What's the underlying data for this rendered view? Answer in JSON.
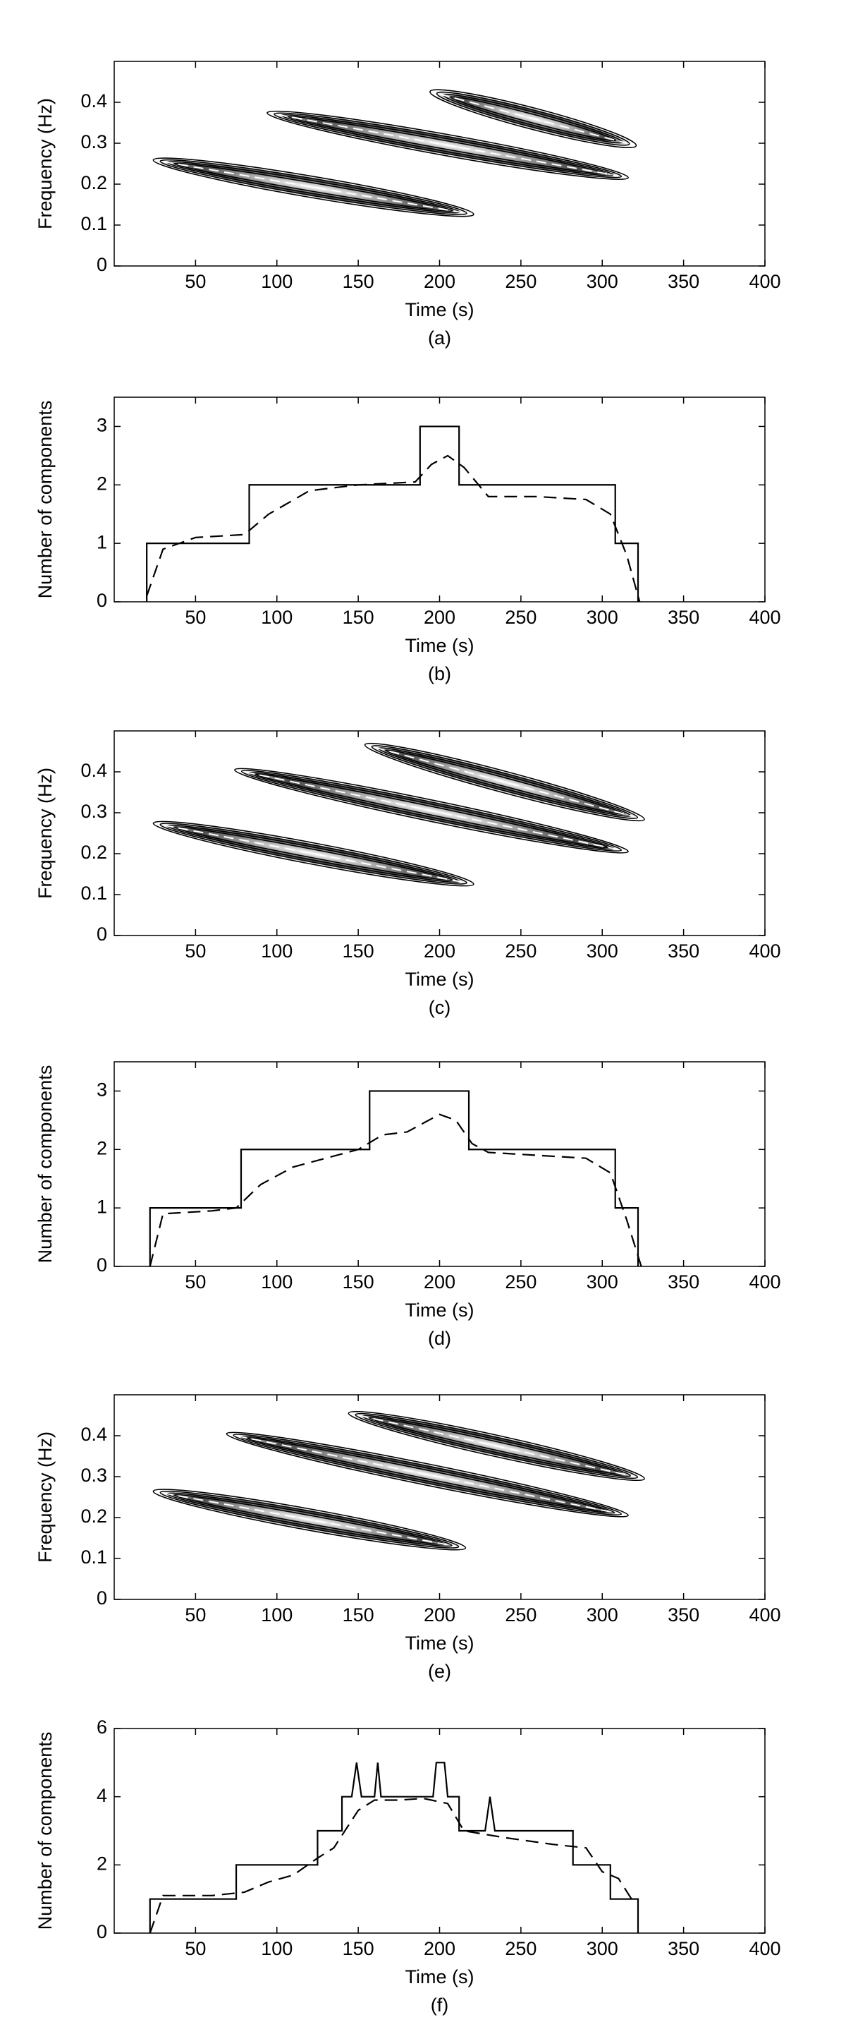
{
  "chart_data": [
    {
      "type": "contour",
      "xlabel": "Time (s)",
      "ylabel": "Frequency (Hz)",
      "caption": "(a)",
      "xlim": [
        0,
        400
      ],
      "xticks": [
        50,
        100,
        150,
        200,
        250,
        300,
        350,
        400
      ],
      "ylim": [
        0,
        0.5
      ],
      "yticks": [
        0,
        0.1,
        0.2,
        0.3,
        0.4
      ],
      "series": [
        {
          "x": [
            30,
            215
          ],
          "values": [
            0.255,
            0.13
          ],
          "color": "#000000"
        },
        {
          "x": [
            100,
            310
          ],
          "values": [
            0.37,
            0.22
          ],
          "color": "#000000"
        },
        {
          "x": [
            200,
            315
          ],
          "values": [
            0.42,
            0.3
          ],
          "color": "#000000"
        }
      ]
    },
    {
      "type": "line",
      "xlabel": "Time (s)",
      "ylabel": "Number of components",
      "caption": "(b)",
      "xlim": [
        0,
        400
      ],
      "xticks": [
        50,
        100,
        150,
        200,
        250,
        300,
        350,
        400
      ],
      "ylim": [
        0,
        3.5
      ],
      "yticks": [
        0,
        1,
        2,
        3
      ],
      "series": [
        {
          "style": "solid",
          "color": "#000000",
          "x": [
            20,
            20,
            83,
            83,
            188,
            188,
            212,
            212,
            308,
            308,
            322,
            322
          ],
          "values": [
            0,
            1,
            1,
            2,
            2,
            3,
            3,
            2,
            2,
            1,
            1,
            0
          ]
        },
        {
          "style": "dashed",
          "color": "#000000",
          "x": [
            20,
            30,
            50,
            80,
            95,
            120,
            150,
            185,
            195,
            205,
            215,
            230,
            260,
            290,
            305,
            315,
            323
          ],
          "values": [
            0.1,
            0.9,
            1.1,
            1.15,
            1.5,
            1.9,
            2.0,
            2.05,
            2.35,
            2.5,
            2.3,
            1.8,
            1.8,
            1.75,
            1.5,
            0.8,
            0
          ]
        }
      ]
    },
    {
      "type": "contour",
      "xlabel": "Time (s)",
      "ylabel": "Frequency (Hz)",
      "caption": "(c)",
      "xlim": [
        0,
        400
      ],
      "xticks": [
        50,
        100,
        150,
        200,
        250,
        300,
        350,
        400
      ],
      "ylim": [
        0,
        0.5
      ],
      "yticks": [
        0,
        0.1,
        0.2,
        0.3,
        0.4
      ],
      "series": [
        {
          "x": [
            30,
            215
          ],
          "values": [
            0.27,
            0.13
          ],
          "color": "#000000"
        },
        {
          "x": [
            80,
            310
          ],
          "values": [
            0.4,
            0.21
          ],
          "color": "#000000"
        },
        {
          "x": [
            160,
            320
          ],
          "values": [
            0.46,
            0.29
          ],
          "color": "#000000"
        }
      ]
    },
    {
      "type": "line",
      "xlabel": "Time (s)",
      "ylabel": "Number of components",
      "caption": "(d)",
      "xlim": [
        0,
        400
      ],
      "xticks": [
        50,
        100,
        150,
        200,
        250,
        300,
        350,
        400
      ],
      "ylim": [
        0,
        3.5
      ],
      "yticks": [
        0,
        1,
        2,
        3
      ],
      "series": [
        {
          "style": "solid",
          "color": "#000000",
          "x": [
            22,
            22,
            78,
            78,
            157,
            157,
            218,
            218,
            308,
            308,
            322,
            322
          ],
          "values": [
            0,
            1,
            1,
            2,
            2,
            3,
            3,
            2,
            2,
            1,
            1,
            0
          ]
        },
        {
          "style": "dashed",
          "color": "#000000",
          "x": [
            22,
            30,
            60,
            75,
            90,
            110,
            130,
            150,
            165,
            180,
            200,
            210,
            220,
            230,
            260,
            290,
            305,
            315,
            324
          ],
          "values": [
            0,
            0.9,
            0.95,
            1.0,
            1.4,
            1.7,
            1.85,
            2.0,
            2.25,
            2.3,
            2.6,
            2.5,
            2.1,
            1.95,
            1.9,
            1.85,
            1.6,
            0.8,
            0
          ]
        }
      ]
    },
    {
      "type": "contour",
      "xlabel": "Time (s)",
      "ylabel": "Frequency (Hz)",
      "caption": "(e)",
      "xlim": [
        0,
        400
      ],
      "xticks": [
        50,
        100,
        150,
        200,
        250,
        300,
        350,
        400
      ],
      "ylim": [
        0,
        0.5
      ],
      "yticks": [
        0,
        0.1,
        0.2,
        0.3,
        0.4
      ],
      "series": [
        {
          "x": [
            30,
            210
          ],
          "values": [
            0.26,
            0.13
          ],
          "color": "#000000"
        },
        {
          "x": [
            75,
            310
          ],
          "values": [
            0.4,
            0.21
          ],
          "color": "#000000"
        },
        {
          "x": [
            150,
            320
          ],
          "values": [
            0.45,
            0.3
          ],
          "color": "#000000"
        }
      ]
    },
    {
      "type": "line",
      "xlabel": "Time (s)",
      "ylabel": "Number of components",
      "caption": "(f)",
      "xlim": [
        0,
        400
      ],
      "xticks": [
        50,
        100,
        150,
        200,
        250,
        300,
        350,
        400
      ],
      "ylim": [
        0,
        6
      ],
      "yticks": [
        0,
        2,
        4,
        6
      ],
      "series": [
        {
          "style": "solid",
          "color": "#000000",
          "x": [
            22,
            22,
            75,
            75,
            125,
            125,
            140,
            140,
            146,
            149,
            152,
            160,
            162,
            164,
            196,
            198,
            203,
            205,
            212,
            212,
            228,
            231,
            234,
            282,
            282,
            305,
            305,
            322,
            322
          ],
          "values": [
            0,
            1,
            1,
            2,
            2,
            3,
            3,
            4,
            4,
            5,
            4,
            4,
            5,
            4,
            4,
            5,
            5,
            4,
            4,
            3,
            3,
            4,
            3,
            3,
            2,
            2,
            1,
            1,
            0
          ]
        },
        {
          "style": "dashed",
          "color": "#000000",
          "x": [
            22,
            30,
            60,
            80,
            95,
            110,
            125,
            135,
            150,
            160,
            175,
            190,
            205,
            215,
            240,
            270,
            290,
            300,
            310,
            318
          ],
          "values": [
            0,
            1.1,
            1.1,
            1.2,
            1.5,
            1.7,
            2.2,
            2.5,
            3.6,
            3.9,
            3.9,
            3.95,
            3.8,
            3.0,
            2.8,
            2.6,
            2.5,
            1.8,
            1.6,
            1.0
          ]
        }
      ]
    }
  ]
}
